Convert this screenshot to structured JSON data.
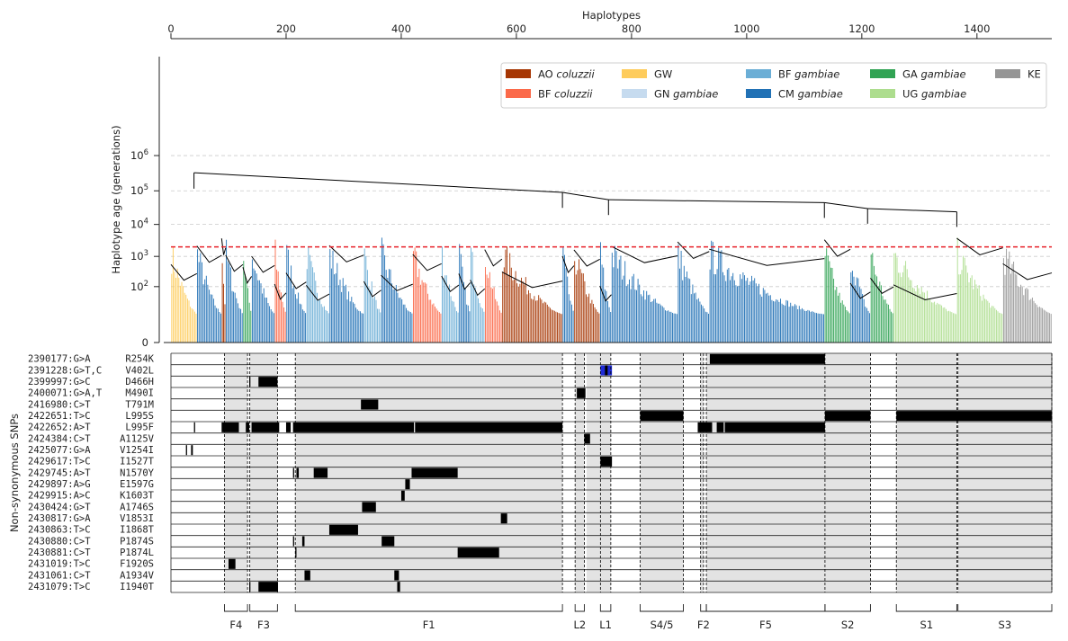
{
  "chart_data": [
    {
      "type": "dendrogram",
      "xlabel": "Haplotypes",
      "ylabel": "Haplotype age (generations)",
      "xlim": [
        0,
        1530
      ],
      "x_ticks": [
        0,
        200,
        400,
        600,
        800,
        1000,
        1200,
        1400
      ],
      "y_scale": "symlog",
      "y_ticks": [
        {
          "value": 0,
          "label": "0"
        },
        {
          "value": 100,
          "base": "10",
          "exp": "2"
        },
        {
          "value": 1000,
          "base": "10",
          "exp": "3"
        },
        {
          "value": 10000,
          "base": "10",
          "exp": "4"
        },
        {
          "value": 100000,
          "base": "10",
          "exp": "5"
        },
        {
          "value": 1000000,
          "base": "10",
          "exp": "6"
        }
      ],
      "grid": "horizontal dashed",
      "threshold_line": {
        "value": 2000,
        "color": "#e8222a"
      },
      "legend_position": "top-right",
      "legend": [
        {
          "name": "AO ",
          "italic": "coluzzii",
          "color": "#a63603"
        },
        {
          "name": "BF ",
          "italic": "coluzzii",
          "color": "#fb6a4a"
        },
        {
          "name": "GW",
          "italic": "",
          "color": "#fecc5c"
        },
        {
          "name": "GN ",
          "italic": "gambiae",
          "color": "#c6dbef"
        },
        {
          "name": "BF ",
          "italic": "gambiae",
          "color": "#6baed6"
        },
        {
          "name": "CM ",
          "italic": "gambiae",
          "color": "#2171b5"
        },
        {
          "name": "GA ",
          "italic": "gambiae",
          "color": "#31a354"
        },
        {
          "name": "UG ",
          "italic": "gambiae",
          "color": "#addd8e"
        },
        {
          "name": "KE",
          "italic": "",
          "color": "#969696"
        }
      ],
      "population_blocks": [
        {
          "start": 0,
          "end": 45,
          "pop": "GW"
        },
        {
          "start": 45,
          "end": 88,
          "pop": "CM gambiae"
        },
        {
          "start": 88,
          "end": 95,
          "pop": "AO coluzzii"
        },
        {
          "start": 95,
          "end": 125,
          "pop": "CM gambiae"
        },
        {
          "start": 125,
          "end": 140,
          "pop": "GA gambiae"
        },
        {
          "start": 140,
          "end": 180,
          "pop": "CM gambiae"
        },
        {
          "start": 180,
          "end": 200,
          "pop": "BF coluzzii"
        },
        {
          "start": 200,
          "end": 235,
          "pop": "CM gambiae"
        },
        {
          "start": 235,
          "end": 275,
          "pop": "BF gambiae"
        },
        {
          "start": 275,
          "end": 335,
          "pop": "CM gambiae"
        },
        {
          "start": 335,
          "end": 365,
          "pop": "BF gambiae"
        },
        {
          "start": 365,
          "end": 420,
          "pop": "CM gambiae"
        },
        {
          "start": 420,
          "end": 470,
          "pop": "BF coluzzii"
        },
        {
          "start": 470,
          "end": 500,
          "pop": "BF gambiae"
        },
        {
          "start": 500,
          "end": 520,
          "pop": "CM gambiae"
        },
        {
          "start": 520,
          "end": 545,
          "pop": "BF gambiae"
        },
        {
          "start": 545,
          "end": 575,
          "pop": "BF coluzzii"
        },
        {
          "start": 575,
          "end": 680,
          "pop": "AO coluzzii"
        },
        {
          "start": 680,
          "end": 700,
          "pop": "CM gambiae"
        },
        {
          "start": 700,
          "end": 745,
          "pop": "AO coluzzii"
        },
        {
          "start": 745,
          "end": 765,
          "pop": "CM gambiae"
        },
        {
          "start": 765,
          "end": 880,
          "pop": "CM gambiae"
        },
        {
          "start": 880,
          "end": 935,
          "pop": "CM gambiae"
        },
        {
          "start": 935,
          "end": 1135,
          "pop": "CM gambiae"
        },
        {
          "start": 1135,
          "end": 1180,
          "pop": "GA gambiae"
        },
        {
          "start": 1180,
          "end": 1215,
          "pop": "CM gambiae"
        },
        {
          "start": 1215,
          "end": 1255,
          "pop": "GA gambiae"
        },
        {
          "start": 1255,
          "end": 1365,
          "pop": "UG gambiae"
        },
        {
          "start": 1365,
          "end": 1445,
          "pop": "UG gambiae"
        },
        {
          "start": 1445,
          "end": 1530,
          "pop": "KE"
        }
      ],
      "root_branches": [
        {
          "x": 40,
          "age": 330000
        },
        {
          "x": 680,
          "age": 90000
        },
        {
          "x": 760,
          "age": 55000
        },
        {
          "x": 1135,
          "age": 45000
        },
        {
          "x": 1210,
          "age": 30000
        },
        {
          "x": 1365,
          "age": 24000
        }
      ]
    },
    {
      "type": "heatmap",
      "ylabel": "Non-synonymous SNPs",
      "snps": [
        {
          "label": "2390177:G>A",
          "aa": "R254K",
          "segments": [
            [
              936,
              1136
            ]
          ]
        },
        {
          "label": "2391228:G>T,C",
          "aa": "V402L",
          "segments": [],
          "blue": [
            [
              746,
              766
            ]
          ]
        },
        {
          "label": "2399997:G>C",
          "aa": "D466H",
          "segments": [
            [
              136,
              138
            ],
            [
              152,
              185
            ]
          ]
        },
        {
          "label": "2400071:G>A,T",
          "aa": "M490I",
          "segments": [
            [
              705,
              720
            ]
          ]
        },
        {
          "label": "2416980:C>T",
          "aa": "T791M",
          "segments": [
            [
              330,
              360
            ]
          ]
        },
        {
          "label": "2422651:T>C",
          "aa": "L995S",
          "segments": [
            [
              815,
              890
            ],
            [
              1136,
              1215
            ],
            [
              1260,
              1530
            ]
          ]
        },
        {
          "label": "2422652:A>T",
          "aa": "L995F",
          "segments": [
            [
              40,
              42
            ],
            [
              88,
              118
            ],
            [
              130,
              136
            ],
            [
              140,
              188
            ],
            [
              200,
              208
            ],
            [
              212,
              422
            ],
            [
              424,
              680
            ],
            [
              915,
              940
            ],
            [
              948,
              960
            ],
            [
              962,
              1136
            ]
          ]
        },
        {
          "label": "2424384:C>T",
          "aa": "A1125V",
          "segments": [
            [
              718,
              728
            ]
          ]
        },
        {
          "label": "2425077:G>A",
          "aa": "V1254I",
          "segments": [
            [
              26,
              28
            ],
            [
              35,
              38
            ]
          ]
        },
        {
          "label": "2429617:T>C",
          "aa": "I1527T",
          "segments": [
            [
              746,
              766
            ]
          ]
        },
        {
          "label": "2429745:A>T",
          "aa": "N1570Y",
          "segments": [
            [
              212,
              214
            ],
            [
              218,
              222
            ],
            [
              248,
              272
            ],
            [
              418,
              498
            ]
          ]
        },
        {
          "label": "2429897:A>G",
          "aa": "E1597G",
          "segments": [
            [
              407,
              415
            ]
          ]
        },
        {
          "label": "2429915:A>C",
          "aa": "K1603T",
          "segments": [
            [
              400,
              406
            ]
          ]
        },
        {
          "label": "2430424:G>T",
          "aa": "A1746S",
          "segments": [
            [
              332,
              356
            ]
          ]
        },
        {
          "label": "2430817:G>A",
          "aa": "V1853I",
          "segments": [
            [
              573,
              584
            ]
          ]
        },
        {
          "label": "2430863:T>C",
          "aa": "I1868T",
          "segments": [
            [
              275,
              325
            ]
          ]
        },
        {
          "label": "2430880:C>T",
          "aa": "P1874S",
          "segments": [
            [
              212,
              214
            ],
            [
              228,
              232
            ],
            [
              366,
              388
            ]
          ]
        },
        {
          "label": "2430881:C>T",
          "aa": "P1874L",
          "segments": [
            [
              216,
              218
            ],
            [
              498,
              570
            ]
          ]
        },
        {
          "label": "2431019:T>C",
          "aa": "F1920S",
          "segments": [
            [
              100,
              112
            ]
          ]
        },
        {
          "label": "2431061:C>T",
          "aa": "A1934V",
          "segments": [
            [
              232,
              242
            ],
            [
              388,
              396
            ]
          ]
        },
        {
          "label": "2431079:T>C",
          "aa": "I1940T",
          "segments": [
            [
              136,
              138
            ],
            [
              152,
              186
            ],
            [
              393,
              398
            ]
          ]
        }
      ],
      "grey_regions": [
        [
          93,
          133
        ],
        [
          137,
          185
        ],
        [
          216,
          680
        ],
        [
          702,
          718
        ],
        [
          722,
          764
        ],
        [
          815,
          890
        ],
        [
          920,
          925
        ],
        [
          930,
          1136
        ],
        [
          1136,
          1215
        ],
        [
          1260,
          1365
        ],
        [
          1367,
          1530
        ]
      ],
      "dashed_lines": [
        93,
        133,
        137,
        185,
        216,
        680,
        702,
        718,
        746,
        764,
        815,
        890,
        920,
        925,
        930,
        1136,
        1215,
        1260,
        1365,
        1367,
        1530
      ],
      "groups": [
        {
          "label": "F4",
          "start": 93,
          "end": 133
        },
        {
          "label": "F3",
          "start": 137,
          "end": 185
        },
        {
          "label": "F1",
          "start": 216,
          "end": 680
        },
        {
          "label": "L2",
          "start": 702,
          "end": 718
        },
        {
          "label": "L1",
          "start": 746,
          "end": 764
        },
        {
          "label": "S4/5",
          "start": 815,
          "end": 890
        },
        {
          "label": "F2",
          "start": 920,
          "end": 930
        },
        {
          "label": "F5",
          "start": 930,
          "end": 1136
        },
        {
          "label": "S2",
          "start": 1136,
          "end": 1215
        },
        {
          "label": "S1",
          "start": 1260,
          "end": 1365
        },
        {
          "label": "S3",
          "start": 1367,
          "end": 1530
        }
      ]
    }
  ]
}
